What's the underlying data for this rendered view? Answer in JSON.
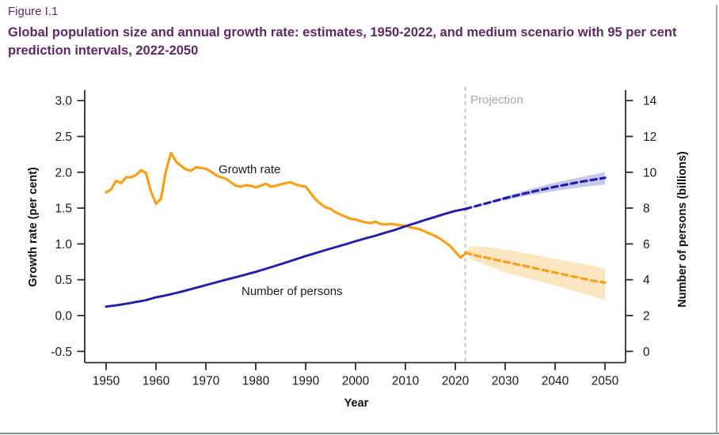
{
  "header": {
    "figure_label": "Figure I.1",
    "title": "Global population size and annual growth rate: estimates, 1950-2022, and medium scenario with 95 per cent prediction intervals, 2022-2050",
    "title_color": "#5E2A63"
  },
  "chart_data": {
    "type": "line",
    "title": "Global population size and annual growth rate: estimates, 1950-2022, and medium scenario with 95 per cent prediction intervals, 2022-2050",
    "xlabel": "Year",
    "ylabel_left": "Growth rate (per cent)",
    "ylabel_right": "Number of persons (billions)",
    "ylim_left": [
      -0.5,
      3.0
    ],
    "ylim_right": [
      0,
      14
    ],
    "xlim": [
      1946,
      2054
    ],
    "grid": false,
    "legend_position": "in-chart labels",
    "x_ticks": [
      1950,
      1960,
      1970,
      1980,
      1990,
      2000,
      2010,
      2020,
      2030,
      2040,
      2050
    ],
    "left_ticks": [
      3.0,
      2.5,
      2.0,
      1.5,
      1.0,
      0.5,
      0.0,
      -0.5
    ],
    "right_ticks": [
      14,
      12,
      10,
      8,
      6,
      4,
      2,
      0
    ],
    "annotations": {
      "projection_label": "Projection",
      "projection_divider_year": 2022,
      "growth_label": "Growth rate",
      "persons_label": "Number of persons"
    },
    "colors": {
      "growth": "#F7A11A",
      "growth_band": "#FBE6C2",
      "persons": "#1F1FA9",
      "persons_band": "#C8C8E8",
      "divider": "#BBBBBB",
      "projection_text": "#A8A8A8",
      "axis": "#2E2E2E"
    },
    "series": [
      {
        "name": "Growth rate (estimates, per cent)",
        "axis": "left",
        "style": "solid",
        "color_key": "growth",
        "points": [
          [
            1950,
            1.72
          ],
          [
            1951,
            1.76
          ],
          [
            1952,
            1.88
          ],
          [
            1953,
            1.85
          ],
          [
            1954,
            1.93
          ],
          [
            1955,
            1.93
          ],
          [
            1956,
            1.96
          ],
          [
            1957,
            2.03
          ],
          [
            1958,
            1.99
          ],
          [
            1959,
            1.73
          ],
          [
            1960,
            1.56
          ],
          [
            1961,
            1.63
          ],
          [
            1962,
            2.02
          ],
          [
            1963,
            2.27
          ],
          [
            1964,
            2.15
          ],
          [
            1965,
            2.09
          ],
          [
            1966,
            2.04
          ],
          [
            1967,
            2.02
          ],
          [
            1968,
            2.07
          ],
          [
            1969,
            2.06
          ],
          [
            1970,
            2.05
          ],
          [
            1971,
            2.01
          ],
          [
            1972,
            1.96
          ],
          [
            1973,
            1.93
          ],
          [
            1974,
            1.91
          ],
          [
            1975,
            1.86
          ],
          [
            1976,
            1.81
          ],
          [
            1977,
            1.8
          ],
          [
            1978,
            1.82
          ],
          [
            1979,
            1.81
          ],
          [
            1980,
            1.79
          ],
          [
            1981,
            1.81
          ],
          [
            1982,
            1.84
          ],
          [
            1983,
            1.8
          ],
          [
            1984,
            1.81
          ],
          [
            1985,
            1.83
          ],
          [
            1986,
            1.85
          ],
          [
            1987,
            1.86
          ],
          [
            1988,
            1.83
          ],
          [
            1989,
            1.81
          ],
          [
            1990,
            1.8
          ],
          [
            1991,
            1.71
          ],
          [
            1992,
            1.62
          ],
          [
            1993,
            1.56
          ],
          [
            1994,
            1.51
          ],
          [
            1995,
            1.49
          ],
          [
            1996,
            1.44
          ],
          [
            1997,
            1.41
          ],
          [
            1998,
            1.38
          ],
          [
            1999,
            1.35
          ],
          [
            2000,
            1.34
          ],
          [
            2001,
            1.32
          ],
          [
            2002,
            1.3
          ],
          [
            2003,
            1.29
          ],
          [
            2004,
            1.31
          ],
          [
            2005,
            1.28
          ],
          [
            2006,
            1.27
          ],
          [
            2007,
            1.28
          ],
          [
            2008,
            1.27
          ],
          [
            2009,
            1.26
          ],
          [
            2010,
            1.25
          ],
          [
            2011,
            1.23
          ],
          [
            2012,
            1.22
          ],
          [
            2013,
            1.2
          ],
          [
            2014,
            1.17
          ],
          [
            2015,
            1.14
          ],
          [
            2016,
            1.11
          ],
          [
            2017,
            1.07
          ],
          [
            2018,
            1.02
          ],
          [
            2019,
            0.97
          ],
          [
            2020,
            0.89
          ],
          [
            2021,
            0.81
          ],
          [
            2022,
            0.86
          ]
        ]
      },
      {
        "name": "Growth rate (medium projection, per cent)",
        "axis": "left",
        "style": "dashed",
        "color_key": "growth",
        "points": [
          [
            2022,
            0.88
          ],
          [
            2024,
            0.84
          ],
          [
            2026,
            0.81
          ],
          [
            2028,
            0.78
          ],
          [
            2030,
            0.75
          ],
          [
            2032,
            0.72
          ],
          [
            2034,
            0.69
          ],
          [
            2036,
            0.66
          ],
          [
            2038,
            0.63
          ],
          [
            2040,
            0.6
          ],
          [
            2042,
            0.57
          ],
          [
            2044,
            0.54
          ],
          [
            2046,
            0.51
          ],
          [
            2048,
            0.48
          ],
          [
            2050,
            0.46
          ]
        ]
      },
      {
        "name": "Growth rate 95% prediction interval",
        "axis": "left",
        "style": "band",
        "color_key": "growth_band",
        "upper": [
          [
            2022,
            0.88
          ],
          [
            2023,
            0.97
          ],
          [
            2026,
            0.96
          ],
          [
            2030,
            0.92
          ],
          [
            2035,
            0.86
          ],
          [
            2040,
            0.79
          ],
          [
            2045,
            0.73
          ],
          [
            2050,
            0.66
          ]
        ],
        "lower": [
          [
            2022,
            0.88
          ],
          [
            2023,
            0.79
          ],
          [
            2026,
            0.71
          ],
          [
            2030,
            0.6
          ],
          [
            2035,
            0.51
          ],
          [
            2040,
            0.42
          ],
          [
            2045,
            0.32
          ],
          [
            2050,
            0.22
          ]
        ]
      },
      {
        "name": "Number of persons (estimates, billions)",
        "axis": "right",
        "style": "solid",
        "color_key": "persons",
        "points": [
          [
            1950,
            2.5
          ],
          [
            1952,
            2.57
          ],
          [
            1954,
            2.66
          ],
          [
            1956,
            2.76
          ],
          [
            1958,
            2.86
          ],
          [
            1960,
            3.02
          ],
          [
            1962,
            3.13
          ],
          [
            1964,
            3.26
          ],
          [
            1966,
            3.4
          ],
          [
            1968,
            3.55
          ],
          [
            1970,
            3.7
          ],
          [
            1972,
            3.85
          ],
          [
            1974,
            4.0
          ],
          [
            1976,
            4.14
          ],
          [
            1978,
            4.29
          ],
          [
            1980,
            4.44
          ],
          [
            1982,
            4.61
          ],
          [
            1984,
            4.78
          ],
          [
            1986,
            4.96
          ],
          [
            1988,
            5.14
          ],
          [
            1990,
            5.32
          ],
          [
            1992,
            5.49
          ],
          [
            1994,
            5.66
          ],
          [
            1996,
            5.82
          ],
          [
            1998,
            5.98
          ],
          [
            2000,
            6.15
          ],
          [
            2002,
            6.31
          ],
          [
            2004,
            6.46
          ],
          [
            2006,
            6.63
          ],
          [
            2008,
            6.79
          ],
          [
            2010,
            6.99
          ],
          [
            2012,
            7.16
          ],
          [
            2014,
            7.34
          ],
          [
            2016,
            7.51
          ],
          [
            2018,
            7.68
          ],
          [
            2020,
            7.84
          ],
          [
            2022,
            7.95
          ]
        ]
      },
      {
        "name": "Number of persons (medium projection, billions)",
        "axis": "right",
        "style": "dashed",
        "color_key": "persons",
        "points": [
          [
            2022,
            7.95
          ],
          [
            2024,
            8.1
          ],
          [
            2026,
            8.25
          ],
          [
            2028,
            8.4
          ],
          [
            2030,
            8.55
          ],
          [
            2032,
            8.69
          ],
          [
            2034,
            8.82
          ],
          [
            2036,
            8.95
          ],
          [
            2038,
            9.07
          ],
          [
            2040,
            9.19
          ],
          [
            2042,
            9.3
          ],
          [
            2044,
            9.41
          ],
          [
            2046,
            9.51
          ],
          [
            2048,
            9.6
          ],
          [
            2050,
            9.69
          ]
        ]
      },
      {
        "name": "Number of persons 95% prediction interval",
        "axis": "right",
        "style": "band",
        "color_key": "persons_band",
        "upper": [
          [
            2022,
            7.95
          ],
          [
            2026,
            8.3
          ],
          [
            2030,
            8.66
          ],
          [
            2035,
            9.06
          ],
          [
            2040,
            9.42
          ],
          [
            2045,
            9.72
          ],
          [
            2050,
            10.0
          ]
        ],
        "lower": [
          [
            2022,
            7.95
          ],
          [
            2026,
            8.2
          ],
          [
            2030,
            8.44
          ],
          [
            2035,
            8.72
          ],
          [
            2040,
            8.96
          ],
          [
            2045,
            9.16
          ],
          [
            2050,
            9.32
          ]
        ]
      }
    ]
  }
}
